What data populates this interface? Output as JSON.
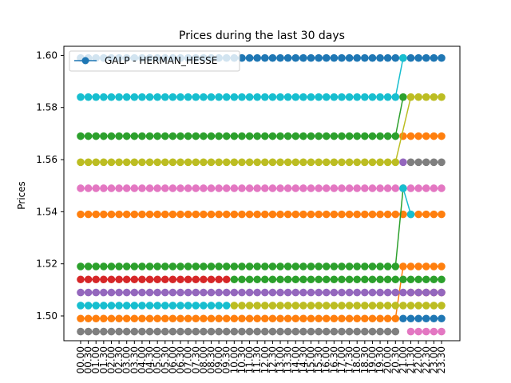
{
  "chart_data": {
    "type": "line",
    "title": "Prices during the last 30 days",
    "xlabel": "",
    "ylabel": "Prices",
    "ylim": [
      1.4905,
      1.6035
    ],
    "yticks": [
      1.5,
      1.52,
      1.54,
      1.56,
      1.58,
      1.6
    ],
    "ytick_labels": [
      "1.50",
      "1.52",
      "1.54",
      "1.56",
      "1.58",
      "1.60"
    ],
    "grid": false,
    "legend_position": "upper-left",
    "legend_entries": [
      "GALP - HERMAN_HESSE"
    ],
    "x": [
      "00.00",
      "00.30",
      "01.00",
      "01.30",
      "02.00",
      "02.30",
      "03.00",
      "03.30",
      "04.00",
      "04.30",
      "05.00",
      "05.30",
      "06.00",
      "06.30",
      "07.00",
      "07.30",
      "08.00",
      "08.30",
      "09.00",
      "09.30",
      "10.00",
      "10.30",
      "11.00",
      "11.30",
      "12.00",
      "12.30",
      "13.00",
      "13.30",
      "14.00",
      "14.30",
      "15.00",
      "15.30",
      "16.00",
      "16.30",
      "17.00",
      "17.30",
      "18.00",
      "18.30",
      "19.00",
      "19.30",
      "20.00",
      "20.30",
      "21.00",
      "21.30",
      "22.00",
      "22.30",
      "23.00",
      "23.30"
    ],
    "series": [
      {
        "name": "GALP - HERMAN_HESSE",
        "color": "#1f77b4",
        "segments": [
          {
            "from": 0,
            "to": 47,
            "value": 1.599
          }
        ]
      },
      {
        "name": "",
        "color": "#1f77b4",
        "segments": [
          {
            "from": 42,
            "to": 47,
            "value": 1.499
          }
        ]
      },
      {
        "name": "",
        "color": "#ff7f0e",
        "segments": [
          {
            "from": 0,
            "to": 47,
            "value": 1.539
          }
        ]
      },
      {
        "name": "",
        "color": "#ff7f0e",
        "segments": [
          {
            "from": 0,
            "to": 41,
            "value": 1.499
          },
          {
            "from": 42,
            "to": 47,
            "value": 1.519
          }
        ]
      },
      {
        "name": "",
        "color": "#ff7f0e",
        "segments": [
          {
            "from": 42,
            "to": 47,
            "value": 1.569
          }
        ]
      },
      {
        "name": "",
        "color": "#2ca02c",
        "segments": [
          {
            "from": 0,
            "to": 41,
            "value": 1.569
          },
          {
            "from": 42,
            "to": 42,
            "value": 1.584
          }
        ]
      },
      {
        "name": "",
        "color": "#2ca02c",
        "segments": [
          {
            "from": 0,
            "to": 41,
            "value": 1.519
          },
          {
            "from": 42,
            "to": 42,
            "value": 1.549
          }
        ]
      },
      {
        "name": "",
        "color": "#2ca02c",
        "segments": [
          {
            "from": 20,
            "to": 47,
            "value": 1.514
          }
        ]
      },
      {
        "name": "",
        "color": "#d62728",
        "segments": [
          {
            "from": 0,
            "to": 19,
            "value": 1.514
          }
        ]
      },
      {
        "name": "",
        "color": "#d62728",
        "segments": [
          {
            "from": 43,
            "to": 47,
            "value": 1.509
          }
        ]
      },
      {
        "name": "",
        "color": "#9467bd",
        "segments": [
          {
            "from": 0,
            "to": 47,
            "value": 1.509
          }
        ]
      },
      {
        "name": "",
        "color": "#9467bd",
        "segments": [
          {
            "from": 42,
            "to": 42,
            "value": 1.559
          }
        ]
      },
      {
        "name": "",
        "color": "#e377c2",
        "segments": [
          {
            "from": 0,
            "to": 47,
            "value": 1.549
          }
        ]
      },
      {
        "name": "",
        "color": "#e377c2",
        "segments": [
          {
            "from": 43,
            "to": 47,
            "value": 1.494
          }
        ]
      },
      {
        "name": "",
        "color": "#7f7f7f",
        "segments": [
          {
            "from": 0,
            "to": 41,
            "value": 1.494
          }
        ]
      },
      {
        "name": "",
        "color": "#7f7f7f",
        "segments": [
          {
            "from": 43,
            "to": 47,
            "value": 1.559
          }
        ]
      },
      {
        "name": "",
        "color": "#bcbd22",
        "segments": [
          {
            "from": 0,
            "to": 41,
            "value": 1.559
          },
          {
            "from": 43,
            "to": 47,
            "value": 1.584
          }
        ]
      },
      {
        "name": "",
        "color": "#bcbd22",
        "segments": [
          {
            "from": 20,
            "to": 47,
            "value": 1.504
          }
        ]
      },
      {
        "name": "",
        "color": "#17becf",
        "segments": [
          {
            "from": 0,
            "to": 41,
            "value": 1.584
          },
          {
            "from": 42,
            "to": 42,
            "value": 1.599
          }
        ]
      },
      {
        "name": "",
        "color": "#17becf",
        "segments": [
          {
            "from": 0,
            "to": 19,
            "value": 1.504
          }
        ]
      },
      {
        "name": "",
        "color": "#17becf",
        "segments": [
          {
            "from": 42,
            "to": 42,
            "value": 1.549
          },
          {
            "from": 43,
            "to": 43,
            "value": 1.539
          }
        ]
      }
    ]
  }
}
